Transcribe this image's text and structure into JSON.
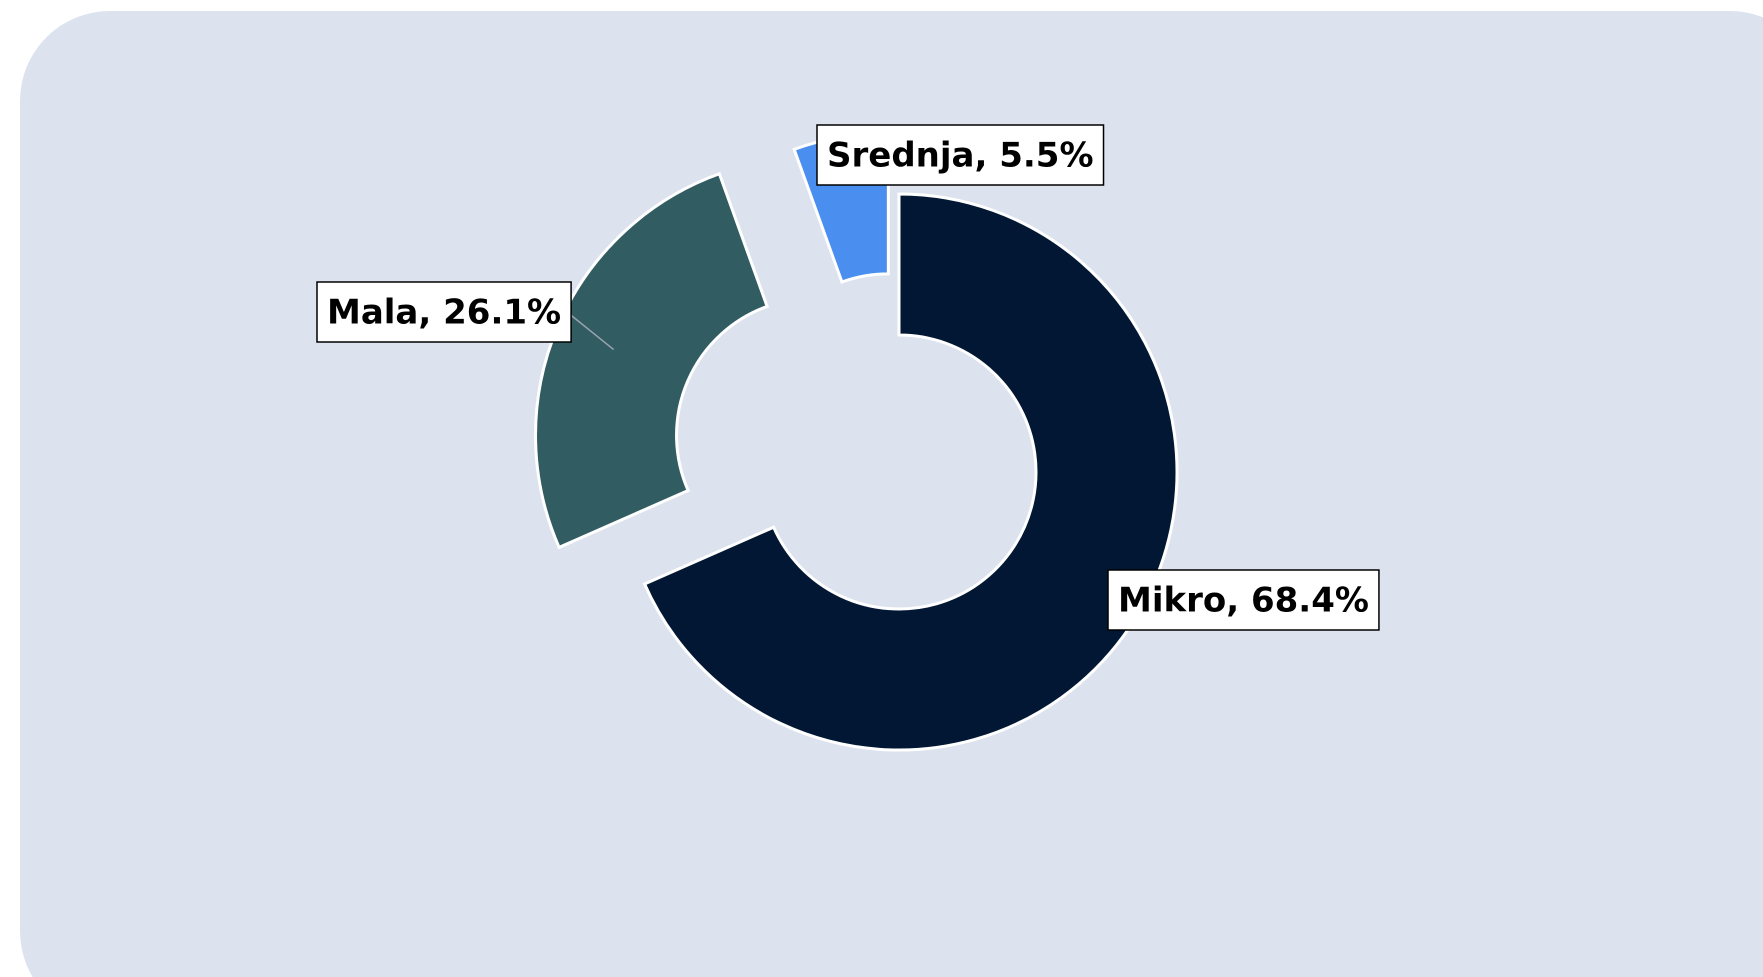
{
  "chart_data": {
    "type": "donut",
    "categories": [
      "Mikro",
      "Mala",
      "Srednja"
    ],
    "values": [
      68.4,
      26.1,
      5.5
    ],
    "value_labels": [
      "Mikro, 68.4%",
      "Mala, 26.1%",
      "Srednja, 5.5%"
    ],
    "colors": [
      "#011733",
      "#315c62",
      "#4a8ef0"
    ]
  }
}
